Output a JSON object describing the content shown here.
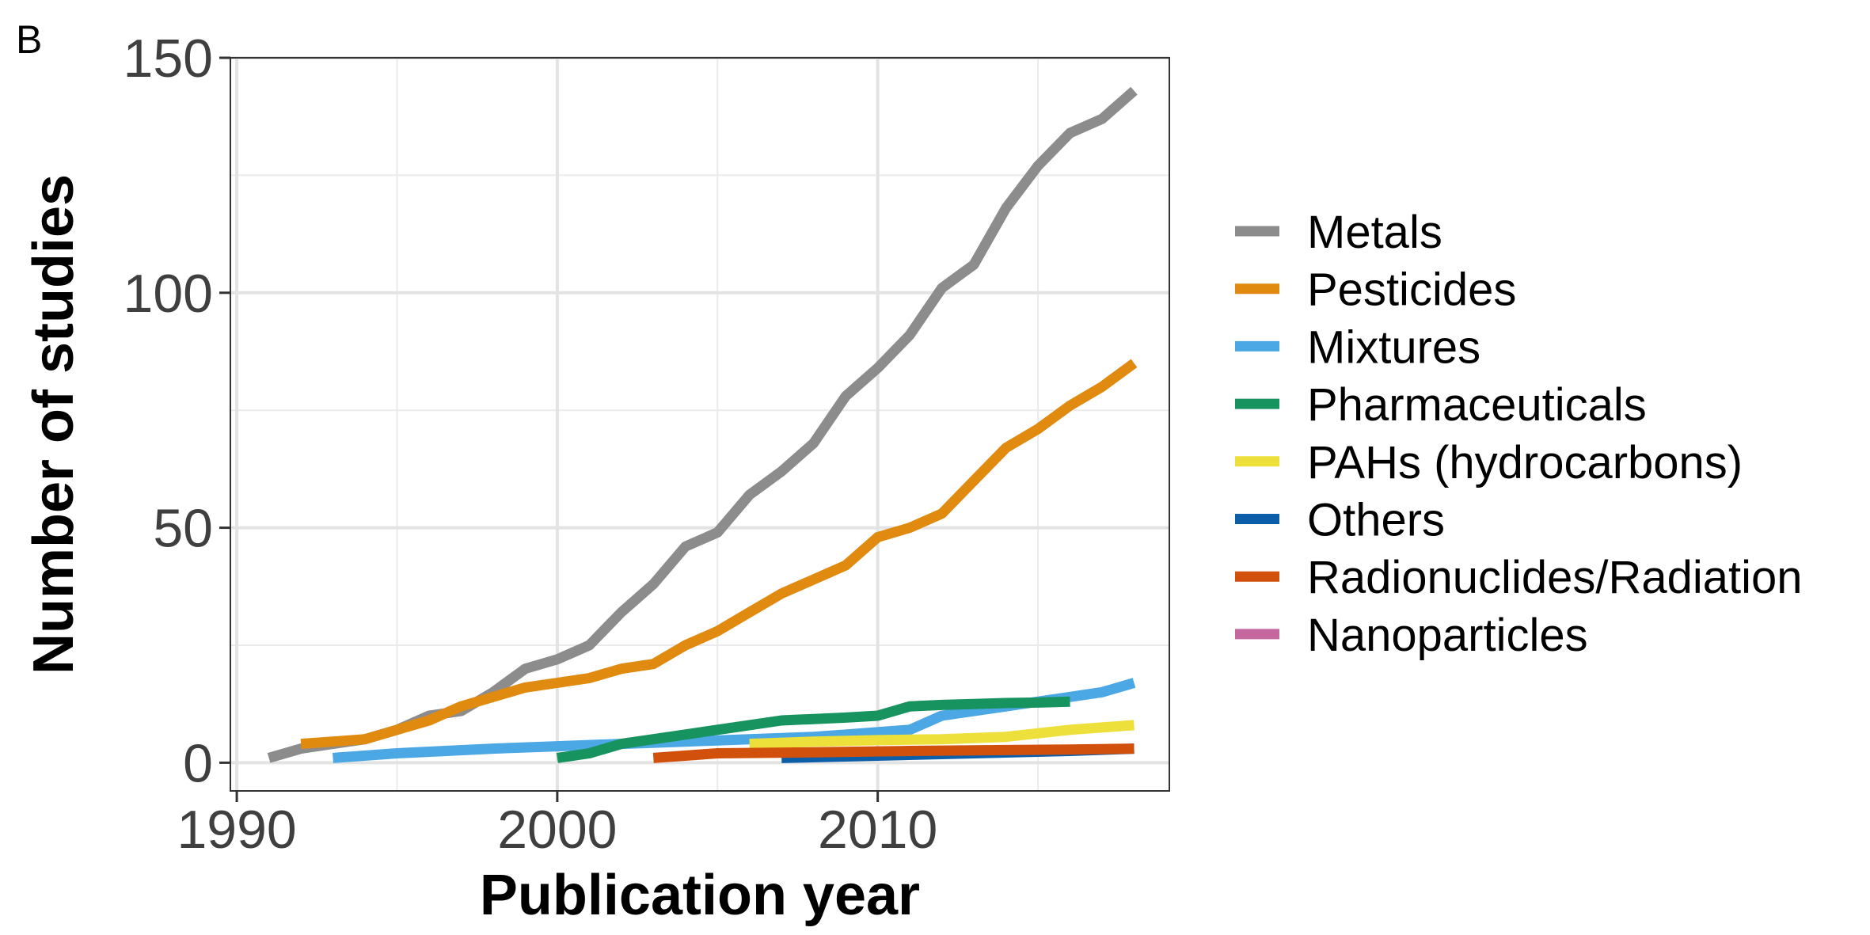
{
  "panel_label": "B",
  "chart_data": {
    "type": "line",
    "xlabel": "Publication year",
    "ylabel": "Number of studies",
    "xlim": [
      1989.8,
      2019.1
    ],
    "ylim": [
      -6,
      150
    ],
    "x_ticks": [
      1990,
      2000,
      2010
    ],
    "y_ticks": [
      0,
      50,
      100,
      150
    ],
    "grid": true,
    "legend_position": "right",
    "series": [
      {
        "name": "Metals",
        "color": "#8c8c8c",
        "x": [
          1991,
          1992,
          1993,
          1994,
          1995,
          1996,
          1997,
          1998,
          1999,
          2000,
          2001,
          2002,
          2003,
          2004,
          2005,
          2006,
          2007,
          2008,
          2009,
          2010,
          2011,
          2012,
          2013,
          2014,
          2015,
          2016,
          2017,
          2018
        ],
        "y": [
          1,
          3,
          4,
          5,
          7,
          10,
          11,
          15,
          20,
          22,
          25,
          32,
          38,
          46,
          49,
          57,
          62,
          68,
          78,
          84,
          91,
          101,
          106,
          118,
          127,
          134,
          137,
          143
        ]
      },
      {
        "name": "Pesticides",
        "color": "#e08b10",
        "x": [
          1992,
          1993,
          1994,
          1995,
          1996,
          1997,
          1998,
          1999,
          2000,
          2001,
          2002,
          2003,
          2004,
          2005,
          2006,
          2007,
          2008,
          2009,
          2010,
          2011,
          2012,
          2013,
          2014,
          2015,
          2016,
          2017,
          2018
        ],
        "y": [
          4,
          4.5,
          5,
          7,
          9,
          12,
          14,
          16,
          17,
          18,
          20,
          21,
          25,
          28,
          32,
          36,
          39,
          42,
          48,
          50,
          53,
          60,
          67,
          71,
          76,
          80,
          85
        ]
      },
      {
        "name": "Mixtures",
        "color": "#4ba8e5",
        "x": [
          1993,
          1995,
          1998,
          2000,
          2002,
          2004,
          2006,
          2008,
          2009,
          2011,
          2012,
          2014,
          2016,
          2017,
          2018
        ],
        "y": [
          1,
          2,
          3,
          3.5,
          4,
          4.5,
          5,
          5.5,
          6,
          7,
          10,
          12,
          14,
          15,
          17
        ]
      },
      {
        "name": "Pharmaceuticals",
        "color": "#16935f",
        "x": [
          2000,
          2001,
          2002,
          2003,
          2004,
          2005,
          2006,
          2007,
          2008,
          2009,
          2010,
          2011,
          2012,
          2013,
          2014,
          2015,
          2016
        ],
        "y": [
          1,
          2,
          4,
          5,
          6,
          7,
          8,
          9,
          9.3,
          9.6,
          10,
          12,
          12.3,
          12.5,
          12.7,
          12.8,
          13
        ]
      },
      {
        "name": "PAHs (hydrocarbons)",
        "color": "#ede03a",
        "x": [
          2006,
          2008,
          2010,
          2012,
          2014,
          2016,
          2018
        ],
        "y": [
          4,
          4.5,
          4.8,
          5,
          5.5,
          7,
          8
        ]
      },
      {
        "name": "Others",
        "color": "#0d5ea8",
        "x": [
          2007,
          2010,
          2013,
          2016,
          2018
        ],
        "y": [
          1,
          1.5,
          2,
          2.5,
          3
        ]
      },
      {
        "name": "Radionuclides/Radiation",
        "color": "#d1500c",
        "x": [
          2003,
          2005,
          2008,
          2011,
          2014,
          2016,
          2018
        ],
        "y": [
          1,
          2,
          2.2,
          2.5,
          2.7,
          2.8,
          3
        ]
      },
      {
        "name": "Nanoparticles",
        "color": "#c5689e",
        "x": [],
        "y": []
      }
    ]
  }
}
